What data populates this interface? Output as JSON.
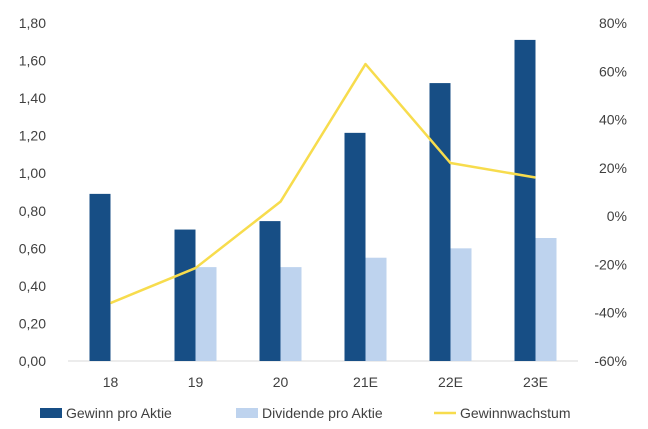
{
  "chart_data": {
    "type": "bar",
    "categories": [
      "18",
      "19",
      "20",
      "21E",
      "22E",
      "23E"
    ],
    "series": [
      {
        "name": "Gewinn pro Aktie",
        "type": "bar",
        "axis": "left",
        "color": "#174e85",
        "values": [
          0.89,
          0.7,
          0.745,
          1.215,
          1.48,
          1.71
        ]
      },
      {
        "name": "Dividende pro Aktie",
        "type": "bar",
        "axis": "left",
        "color": "#bed3ee",
        "values": [
          null,
          0.5,
          0.5,
          0.55,
          0.6,
          0.655
        ]
      },
      {
        "name": "Gewinnwachstum",
        "type": "line",
        "axis": "right",
        "color": "#f7dc4d",
        "values": [
          -36,
          -21.5,
          6,
          63,
          22,
          16
        ]
      }
    ],
    "y_left": {
      "min": 0,
      "max": 1.8,
      "step": 0.2,
      "tick_labels": [
        "0,00",
        "0,20",
        "0,40",
        "0,60",
        "0,80",
        "1,00",
        "1,20",
        "1,40",
        "1,60",
        "1,80"
      ]
    },
    "y_right": {
      "min": -60,
      "max": 80,
      "step": 20,
      "tick_labels": [
        "-60%",
        "-40%",
        "-20%",
        "0%",
        "20%",
        "40%",
        "60%",
        "80%"
      ]
    },
    "legend": {
      "placement": "bottom"
    },
    "grid": false
  }
}
